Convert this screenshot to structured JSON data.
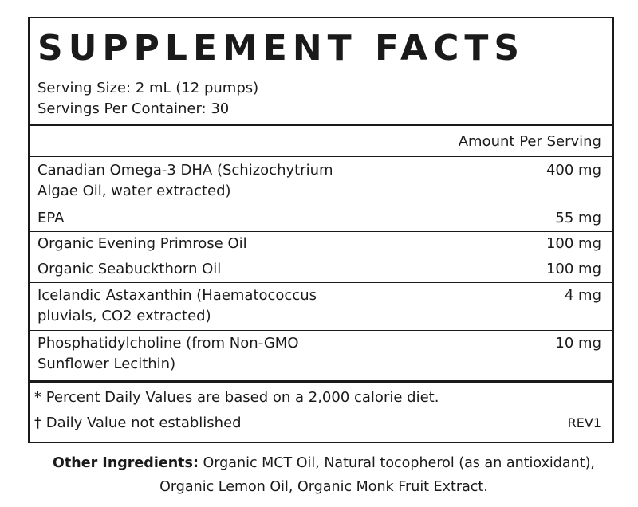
{
  "title": "SUPPLEMENT FACTS",
  "serving_size": "Serving Size: 2 mL (12 pumps)",
  "servings_per_container": "Servings Per Container: 30",
  "amount_per_serving_header": "Amount Per Serving",
  "ingredients": [
    {
      "name_line1": "Canadian Omega-3 DHA (Schizochytrium",
      "name_line2": "Algae Oil, water extracted)",
      "amount": "400 mg"
    },
    {
      "name_line1": "EPA",
      "name_line2": "",
      "amount": "55 mg"
    },
    {
      "name_line1": "Organic Evening Primrose Oil",
      "name_line2": "",
      "amount": "100 mg"
    },
    {
      "name_line1": "Organic Seabuckthorn Oil",
      "name_line2": "",
      "amount": "100 mg"
    },
    {
      "name_line1": "Icelandic Astaxanthin (Haematococcus",
      "name_line2": "pluvials, CO2 extracted)",
      "amount": "4 mg"
    },
    {
      "name_line1": "Phosphatidylcholine (from Non-GMO",
      "name_line2": "Sunflower Lecithin)",
      "amount": "10 mg"
    }
  ],
  "footnote_percent": "* Percent Daily Values are based on a 2,000 calorie diet.",
  "footnote_dagger": "† Daily Value not established",
  "revision": "REV1",
  "other_ingredients": {
    "label": "Other Ingredients:",
    "text": "Organic MCT Oil, Natural tocopherol (as an antioxidant), Organic Lemon Oil, Organic Monk Fruit Extract."
  }
}
